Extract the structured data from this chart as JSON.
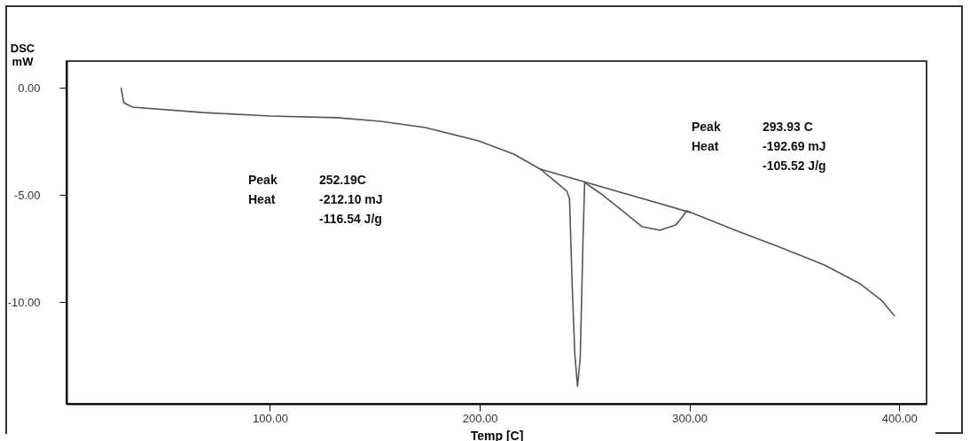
{
  "chart_data": {
    "type": "line",
    "xlabel": "Temp [C]",
    "ylabel": "DSC\nmW",
    "xlim": [
      3,
      413
    ],
    "ylim": [
      -14.75,
      1.24
    ],
    "xticks": [
      {
        "value": 100,
        "label": "100.00"
      },
      {
        "value": 200,
        "label": "200.00"
      },
      {
        "value": 300,
        "label": "300.00"
      },
      {
        "value": 400,
        "label": "400.00"
      }
    ],
    "yticks": [
      {
        "value": 0,
        "label": "0.00"
      },
      {
        "value": -5,
        "label": "-5.00"
      },
      {
        "value": -10,
        "label": "-10.00"
      }
    ],
    "grid": false,
    "legend": false,
    "marker": "none",
    "line_style": "solid",
    "series": [
      {
        "color": "#555555",
        "x": [
          29.0,
          30.3,
          34.5,
          68.3,
          100,
          131.7,
          152.8,
          174.0,
          199.3,
          216.2,
          228.9,
          241.5,
          242.8,
          244.1,
          245.3,
          246.6,
          247.9,
          249.2,
          250.0,
          258.5,
          266.9,
          277.4,
          285.9,
          293.5,
          296.9,
          298.6,
          321.8,
          342.9,
          364.1,
          381.0,
          391.5,
          397.8
        ],
        "values": [
          0.0,
          -0.7,
          -0.91,
          -1.16,
          -1.32,
          -1.4,
          -1.57,
          -1.86,
          -2.48,
          -3.1,
          -3.8,
          -4.83,
          -5.17,
          -9.3,
          -12.4,
          -13.93,
          -12.6,
          -7.23,
          -4.42,
          -5.0,
          -5.66,
          -6.49,
          -6.65,
          -6.4,
          -5.99,
          -5.74,
          -6.65,
          -7.44,
          -8.26,
          -9.13,
          -9.92,
          -10.66
        ]
      },
      {
        "color": "#555555",
        "x": [
          228.9,
          300.7
        ],
        "values": [
          -3.8,
          -5.83
        ]
      }
    ],
    "annotations": [
      "Peak\t252.19C\nHeat\t-212.10 mJ\n\t-116.54 J/g",
      "Peak\t293.93  C\nHeat\t-192.69 mJ\n\t-105.52 J/g"
    ]
  }
}
